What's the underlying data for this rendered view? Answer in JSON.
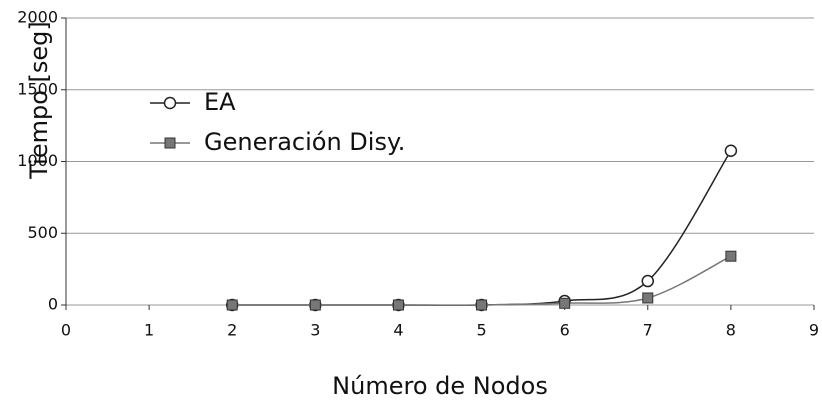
{
  "chart_data": {
    "type": "line",
    "x": [
      2,
      3,
      4,
      5,
      6,
      7,
      8
    ],
    "series": [
      {
        "name": "EA",
        "color": "#222222",
        "values": [
          0,
          0,
          0,
          0,
          28,
          167,
          1075
        ]
      },
      {
        "name": "Generación Disy.",
        "color": "#777777",
        "values": [
          0,
          0,
          0,
          0,
          12,
          49,
          340
        ]
      }
    ],
    "xlabel": "Número de Nodos",
    "ylabel": "Tiempo [seg]",
    "xlim": [
      0,
      9
    ],
    "xticks": [
      0,
      1,
      2,
      3,
      4,
      5,
      6,
      7,
      8,
      9
    ],
    "ylim": [
      0,
      2000
    ],
    "yticks": [
      0,
      500,
      1000,
      1500,
      2000
    ],
    "grid": true,
    "legend": "upper-left"
  }
}
